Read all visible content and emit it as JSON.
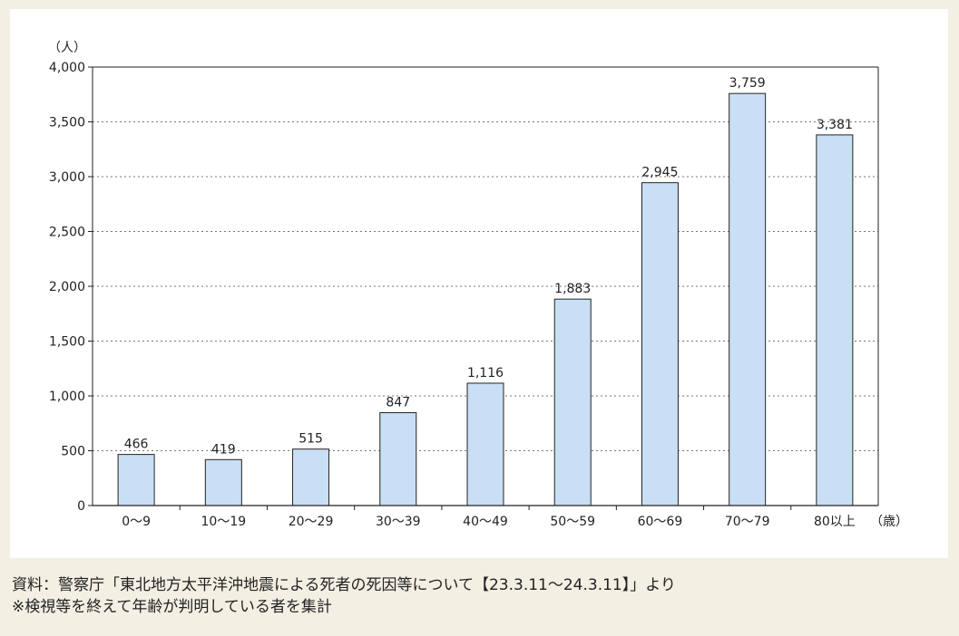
{
  "chart_data": {
    "type": "bar",
    "categories": [
      "0〜9",
      "10〜19",
      "20〜29",
      "30〜39",
      "40〜49",
      "50〜59",
      "60〜69",
      "70〜79",
      "80以上"
    ],
    "values": [
      466,
      419,
      515,
      847,
      1116,
      1883,
      2945,
      3759,
      3381
    ],
    "value_labels": [
      "466",
      "419",
      "515",
      "847",
      "1,116",
      "1,883",
      "2,945",
      "3,759",
      "3,381"
    ],
    "ylim": [
      0,
      4000
    ],
    "yticks": [
      0,
      500,
      1000,
      1500,
      2000,
      2500,
      3000,
      3500,
      4000
    ],
    "ytick_labels": [
      "0",
      "500",
      "1,000",
      "1,500",
      "2,000",
      "2,500",
      "3,000",
      "3,500",
      "4,000"
    ],
    "yunit": "（人）",
    "xunit": "（歳）",
    "grid": true,
    "bar_color": "#c9dff5",
    "bar_edge_color": "#222222"
  },
  "source": {
    "line1": "資料：警察庁「東北地方太平洋沖地震による死者の死因等について【23.3.11〜24.3.11】」より",
    "line2": "※検視等を終えて年齢が判明している者を集計"
  }
}
